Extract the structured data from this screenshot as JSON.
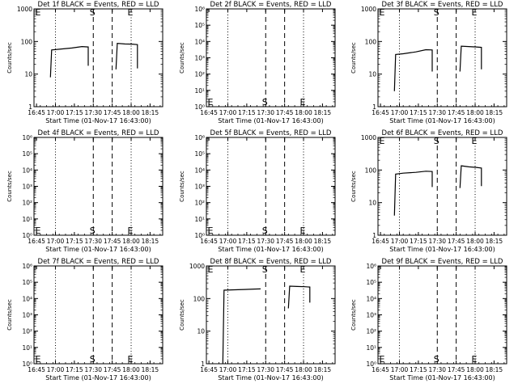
{
  "chart_data": {
    "type": "line",
    "xlabel": "Start Time (01-Nov-17 16:43:00)",
    "ylabel": "Counts/sec",
    "x_tick_labels": [
      "16:45",
      "17:00",
      "17:15",
      "17:30",
      "17:45",
      "18:00",
      "18:15"
    ],
    "x_ticks_min": [
      2,
      17,
      32,
      47,
      62,
      77,
      92
    ],
    "xlim_min": [
      0,
      102
    ],
    "markers": [
      {
        "label": "S",
        "x_min": 47,
        "style": "dashed"
      },
      {
        "label": "E",
        "x_min": 77,
        "style": "dotted"
      }
    ],
    "extra_lines": [
      {
        "x_min": 17,
        "style": "dotted"
      },
      {
        "x_min": 62,
        "style": "dashed"
      }
    ],
    "panels": [
      {
        "title": "Det 1f BLACK = Events, RED = LLD",
        "ylim": [
          1,
          1000
        ],
        "y_tick_labels": [
          "1",
          "10",
          "100",
          "1000"
        ],
        "segments": [
          {
            "x": [
              13,
              14,
              20,
              30,
              38,
              43,
              43
            ],
            "y": [
              8,
              55,
              58,
              63,
              70,
              68,
              18
            ]
          },
          {
            "x": [
              65,
              66,
              72,
              78,
              82,
              82
            ],
            "y": [
              14,
              88,
              84,
              83,
              80,
              15
            ]
          }
        ],
        "E_label_top": true
      },
      {
        "title": "Det 2f BLACK = Events, RED = LLD",
        "ylim": [
          1,
          1000000
        ],
        "y_tick_labels": [
          "10⁰",
          "10¹",
          "10²",
          "10³",
          "10⁴",
          "10⁵",
          "10⁶"
        ],
        "segments": [],
        "E_label_top": false
      },
      {
        "title": "Det 3f BLACK = Events, RED = LLD",
        "ylim": [
          1,
          1000
        ],
        "y_tick_labels": [
          "1",
          "10",
          "100",
          "1000"
        ],
        "segments": [
          {
            "x": [
              13,
              14,
              20,
              30,
              38,
              43,
              43
            ],
            "y": [
              3,
              40,
              42,
              48,
              56,
              55,
              12
            ]
          },
          {
            "x": [
              65,
              66,
              72,
              78,
              82,
              82
            ],
            "y": [
              12,
              72,
              70,
              68,
              66,
              14
            ]
          }
        ],
        "E_label_top": true
      },
      {
        "title": "Det 4f BLACK = Events, RED = LLD",
        "ylim": [
          1,
          1000000
        ],
        "y_tick_labels": [
          "10⁰",
          "10¹",
          "10²",
          "10³",
          "10⁴",
          "10⁵",
          "10⁶"
        ],
        "segments": [],
        "E_label_top": false
      },
      {
        "title": "Det 5f BLACK = Events, RED = LLD",
        "ylim": [
          1,
          1000000
        ],
        "y_tick_labels": [
          "10⁰",
          "10¹",
          "10²",
          "10³",
          "10⁴",
          "10⁵",
          "10⁶"
        ],
        "segments": [],
        "E_label_top": false
      },
      {
        "title": "Det 6f BLACK = Events, RED = LLD",
        "ylim": [
          1,
          1000
        ],
        "y_tick_labels": [
          "1",
          "10",
          "100",
          "1000"
        ],
        "segments": [
          {
            "x": [
              13,
              14,
              20,
              30,
              38,
              43,
              43
            ],
            "y": [
              4,
              75,
              80,
              85,
              92,
              90,
              30
            ]
          },
          {
            "x": [
              65,
              66,
              72,
              78,
              82,
              82
            ],
            "y": [
              28,
              135,
              125,
              120,
              115,
              32
            ]
          }
        ],
        "E_label_top": true
      },
      {
        "title": "Det 7f BLACK = Events, RED = LLD",
        "ylim": [
          1,
          1000000
        ],
        "y_tick_labels": [
          "10⁰",
          "10¹",
          "10²",
          "10³",
          "10⁴",
          "10⁵",
          "10⁶"
        ],
        "segments": [],
        "E_label_top": false
      },
      {
        "title": "Det 8f BLACK = Events, RED = LLD",
        "ylim": [
          1,
          1000
        ],
        "y_tick_labels": [
          "1",
          "10",
          "100",
          "1000"
        ],
        "segments": [
          {
            "x": [
              13,
              14,
              20,
              30,
              38,
              43,
              43
            ],
            "y": [
              1,
              180,
              185,
              190,
              195,
              198,
              198
            ]
          },
          {
            "x": [
              65,
              66,
              72,
              78,
              82,
              82
            ],
            "y": [
              50,
              240,
              235,
              230,
              225,
              75
            ]
          }
        ],
        "E_label_top": true
      },
      {
        "title": "Det 9f BLACK = Events, RED = LLD",
        "ylim": [
          1,
          1000000
        ],
        "y_tick_labels": [
          "10⁰",
          "10¹",
          "10²",
          "10³",
          "10⁴",
          "10⁵",
          "10⁶"
        ],
        "segments": [],
        "E_label_top": false
      }
    ]
  }
}
